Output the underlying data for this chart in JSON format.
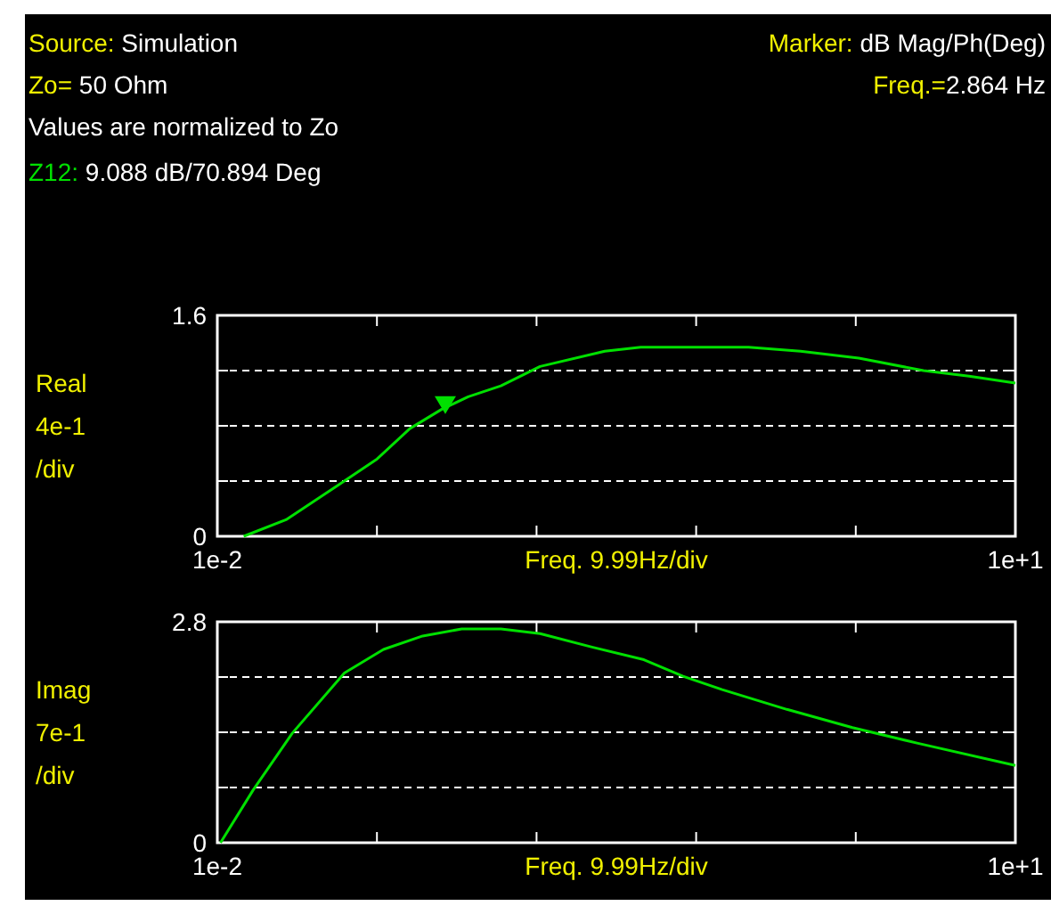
{
  "chart_data": [
    {
      "type": "line",
      "xlabel": "Freq. 9.99Hz/div",
      "ylabel": "Real\n4e-1\n/div",
      "annotations": [
        "Source: Simulation",
        "Zo= 50 Ohm",
        "Values are normalized to Zo",
        "Z12: 9.088 dB/70.894 Deg",
        "Marker: dB Mag/Ph(Deg)",
        "Freq.=2.864 Hz"
      ],
      "xlim": [
        0.01,
        10
      ],
      "xticks": [
        {
          "value": 0.01,
          "label": "1e-2"
        },
        {
          "value": 2.008,
          "label": null
        },
        {
          "value": 4.006,
          "label": null
        },
        {
          "value": 6.004,
          "label": null
        },
        {
          "value": 8.002,
          "label": null
        },
        {
          "value": 10,
          "label": "1e+1"
        }
      ],
      "ylim": [
        0,
        1.6
      ],
      "yticks": [
        0,
        {
          "value": 0.4,
          "label": null
        },
        {
          "value": 0.8,
          "label": null
        },
        {
          "value": 1.2,
          "label": null
        },
        1.6
      ],
      "grid": "y",
      "line_style": "solid",
      "series": [
        {
          "color": "#00e000",
          "x": [
            0.34,
            0.87,
            1.52,
            2.01,
            2.42,
            2.82,
            3.15,
            3.56,
            4.05,
            4.86,
            5.31,
            6.66,
            7.31,
            8.04,
            8.85,
            9.42,
            10
          ],
          "values": [
            0,
            0.12,
            0.37,
            0.56,
            0.78,
            0.92,
            1.01,
            1.09,
            1.23,
            1.34,
            1.37,
            1.37,
            1.34,
            1.29,
            1.2,
            1.16,
            1.11
          ]
        },
        {
          "type": "scatter",
          "marker": "triangle",
          "color": "#00e000",
          "x": [
            2.864
          ],
          "values": [
            0.95
          ]
        }
      ]
    },
    {
      "type": "line",
      "xlabel": "Freq. 9.99Hz/div",
      "ylabel": "Imag\n7e-1\n/div",
      "xlim": [
        0.01,
        10
      ],
      "xticks": [
        {
          "value": 0.01,
          "label": "1e-2"
        },
        {
          "value": 2.008,
          "label": null
        },
        {
          "value": 4.006,
          "label": null
        },
        {
          "value": 6.004,
          "label": null
        },
        {
          "value": 8.002,
          "label": null
        },
        {
          "value": 10,
          "label": "1e+1"
        }
      ],
      "ylim": [
        0,
        2.8
      ],
      "yticks": [
        0,
        {
          "value": 0.7,
          "label": null
        },
        {
          "value": 1.4,
          "label": null
        },
        {
          "value": 2.1,
          "label": null
        },
        2.8
      ],
      "grid": "y",
      "line_style": "solid",
      "series": [
        {
          "color": "#00e000",
          "x": [
            0.05,
            0.46,
            0.95,
            1.6,
            2.09,
            2.58,
            3.07,
            3.56,
            4.05,
            4.7,
            5.35,
            5.84,
            6.33,
            7.14,
            7.96,
            8.78,
            10
          ],
          "values": [
            0,
            0.67,
            1.39,
            2.15,
            2.45,
            2.62,
            2.71,
            2.71,
            2.65,
            2.48,
            2.32,
            2.11,
            1.94,
            1.69,
            1.46,
            1.26,
            0.98
          ]
        }
      ]
    }
  ]
}
